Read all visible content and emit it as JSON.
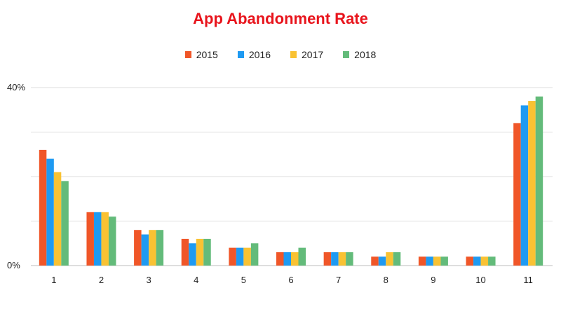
{
  "chart_data": {
    "type": "bar",
    "title": "App Abandonment Rate",
    "xlabel": "",
    "ylabel": "",
    "categories": [
      "1",
      "2",
      "3",
      "4",
      "5",
      "6",
      "7",
      "8",
      "9",
      "10",
      "11"
    ],
    "series": [
      {
        "name": "2015",
        "color": "#f05628",
        "values": [
          26,
          12,
          8,
          6,
          4,
          3,
          3,
          2,
          2,
          2,
          32
        ]
      },
      {
        "name": "2016",
        "color": "#1e9af2",
        "values": [
          24,
          12,
          7,
          5,
          4,
          3,
          3,
          2,
          2,
          2,
          36
        ]
      },
      {
        "name": "2017",
        "color": "#f9c233",
        "values": [
          21,
          12,
          8,
          6,
          4,
          3,
          3,
          3,
          2,
          2,
          37
        ]
      },
      {
        "name": "2018",
        "color": "#63bb7a",
        "values": [
          19,
          11,
          8,
          6,
          5,
          4,
          3,
          3,
          2,
          2,
          38
        ]
      }
    ],
    "ylim": [
      0,
      40
    ],
    "yticks": [
      {
        "value": 0,
        "label": "0%"
      },
      {
        "value": 10,
        "label": ""
      },
      {
        "value": 20,
        "label": ""
      },
      {
        "value": 30,
        "label": ""
      },
      {
        "value": 40,
        "label": "40%"
      }
    ],
    "grid": true,
    "legend_position": "top-center",
    "title_color": "#e8141c"
  }
}
